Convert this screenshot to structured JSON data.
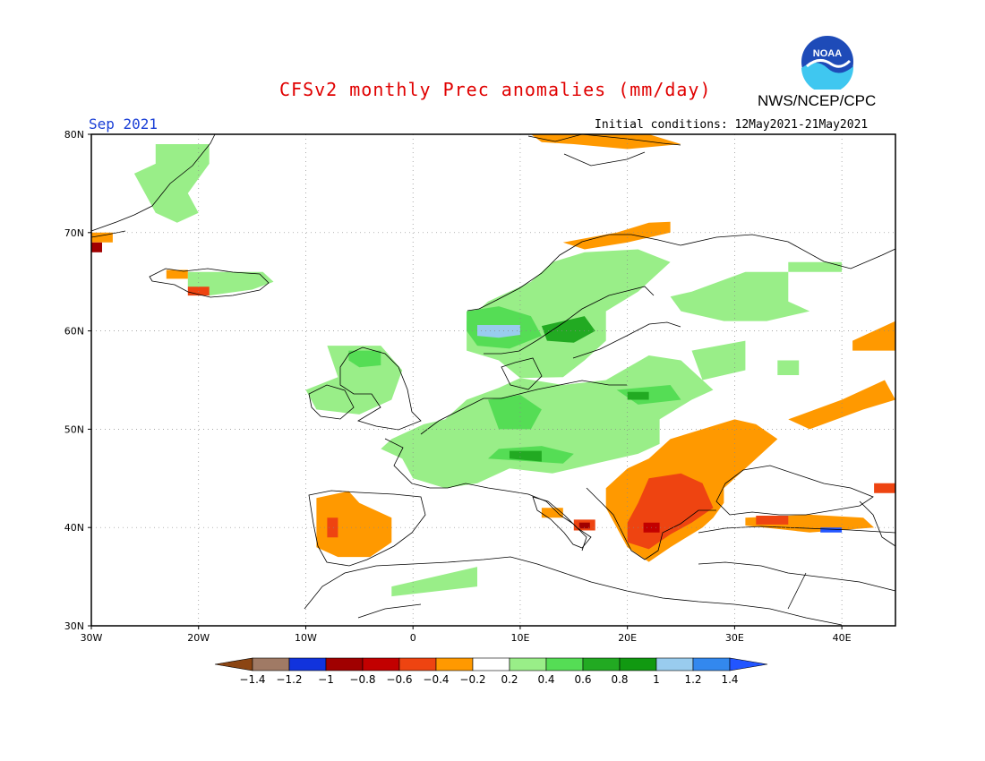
{
  "title": "CFSv2 monthly Prec anomalies (mm/day)",
  "agency": "NWS/NCEP/CPC",
  "logo_text": "NOAA",
  "month": "Sep 2021",
  "initial_conditions": "Initial conditions: 12May2021-21May2021",
  "map": {
    "lon_range": [
      -30,
      45
    ],
    "lat_range": [
      30,
      80
    ],
    "lon_labels": [
      {
        "v": -30,
        "t": "30W"
      },
      {
        "v": -20,
        "t": "20W"
      },
      {
        "v": -10,
        "t": "10W"
      },
      {
        "v": 0,
        "t": "0"
      },
      {
        "v": 10,
        "t": "10E"
      },
      {
        "v": 20,
        "t": "20E"
      },
      {
        "v": 30,
        "t": "30E"
      },
      {
        "v": 40,
        "t": "40E"
      }
    ],
    "lat_labels": [
      {
        "v": 30,
        "t": "30N"
      },
      {
        "v": 40,
        "t": "40N"
      },
      {
        "v": 50,
        "t": "50N"
      },
      {
        "v": 60,
        "t": "60N"
      },
      {
        "v": 70,
        "t": "70N"
      },
      {
        "v": 80,
        "t": "80N"
      }
    ],
    "grid": "dotted"
  },
  "colorbar": {
    "boundaries": [
      "-1.4",
      "-1.2",
      "-1",
      "-0.8",
      "-0.6",
      "-0.4",
      "-0.2",
      "0.2",
      "0.4",
      "0.6",
      "0.8",
      "1",
      "1.2",
      "1.4"
    ],
    "colors": [
      "#8b4513",
      "#a07a65",
      "#1133dd",
      "#a00000",
      "#c20000",
      "#ee4411",
      "#ff9900",
      "#ffffff",
      "#99ee88",
      "#55dd55",
      "#22aa22",
      "#119911",
      "#99ccee",
      "#3388ee",
      "#2255ff"
    ]
  },
  "anomaly_regions": [
    {
      "name": "Greenland east coast",
      "color": "#99ee88",
      "pts": [
        [
          -24,
          79
        ],
        [
          -19,
          79
        ],
        [
          -19,
          77
        ],
        [
          -21,
          74
        ],
        [
          -20,
          72
        ],
        [
          -22,
          71
        ],
        [
          -24,
          72
        ],
        [
          -25,
          74
        ],
        [
          -26,
          76
        ],
        [
          -24,
          77
        ]
      ]
    },
    {
      "name": "Svalbard",
      "color": "#ff9900",
      "pts": [
        [
          11,
          80
        ],
        [
          22,
          80
        ],
        [
          25,
          79
        ],
        [
          20,
          78.5
        ],
        [
          15,
          79
        ],
        [
          12,
          79.2
        ]
      ]
    },
    {
      "name": "Greenland SE corner",
      "color": "#ff9900",
      "pts": [
        [
          -30,
          70
        ],
        [
          -28,
          70
        ],
        [
          -28,
          69
        ],
        [
          -30,
          69
        ]
      ]
    },
    {
      "name": "Greenland SE tip",
      "color": "#a00000",
      "pts": [
        [
          -30,
          69
        ],
        [
          -29,
          69
        ],
        [
          -29,
          68
        ],
        [
          -30,
          68
        ]
      ]
    },
    {
      "name": "Iceland",
      "color": "#99ee88",
      "pts": [
        [
          -21,
          66
        ],
        [
          -14,
          66
        ],
        [
          -13,
          65
        ],
        [
          -15,
          64.2
        ],
        [
          -19,
          63.6
        ],
        [
          -21,
          64.5
        ]
      ]
    },
    {
      "name": "Iceland NW",
      "color": "#ff9900",
      "pts": [
        [
          -23,
          66.2
        ],
        [
          -21,
          66.2
        ],
        [
          -21,
          65.3
        ],
        [
          -23,
          65.3
        ]
      ]
    },
    {
      "name": "Iceland south",
      "color": "#ee4411",
      "pts": [
        [
          -21,
          64.5
        ],
        [
          -19,
          64.5
        ],
        [
          -19,
          63.6
        ],
        [
          -21,
          63.6
        ]
      ]
    },
    {
      "name": "Norway north coast",
      "color": "#ff9900",
      "pts": [
        [
          14,
          69
        ],
        [
          19,
          70
        ],
        [
          22,
          71
        ],
        [
          24,
          71.1
        ],
        [
          24,
          70
        ],
        [
          20,
          69
        ],
        [
          16,
          68.3
        ]
      ]
    },
    {
      "name": "Scandinavia",
      "color": "#99ee88",
      "pts": [
        [
          5,
          61
        ],
        [
          7,
          63
        ],
        [
          11,
          65
        ],
        [
          13,
          67
        ],
        [
          16,
          68
        ],
        [
          21,
          68.3
        ],
        [
          24,
          67
        ],
        [
          21,
          64
        ],
        [
          18,
          62
        ],
        [
          18,
          59
        ],
        [
          16,
          57
        ],
        [
          14,
          55.3
        ],
        [
          10,
          55.2
        ],
        [
          8,
          57
        ],
        [
          5,
          58
        ],
        [
          5,
          60
        ]
      ]
    },
    {
      "name": "Norway west",
      "color": "#55dd55",
      "pts": [
        [
          5,
          62
        ],
        [
          8,
          62.5
        ],
        [
          11,
          61.5
        ],
        [
          12,
          59.5
        ],
        [
          9,
          58.2
        ],
        [
          6,
          58.5
        ],
        [
          5,
          60
        ]
      ]
    },
    {
      "name": "Sweden central",
      "color": "#22aa22",
      "pts": [
        [
          12,
          60.5
        ],
        [
          16,
          61.5
        ],
        [
          17,
          60
        ],
        [
          15,
          58.8
        ],
        [
          12.5,
          59
        ]
      ]
    },
    {
      "name": "Norway fjord",
      "color": "#99ccee",
      "pts": [
        [
          6,
          60.6
        ],
        [
          10,
          60.6
        ],
        [
          10,
          59.6
        ],
        [
          8,
          59.3
        ],
        [
          6,
          59.5
        ]
      ]
    },
    {
      "name": "Finland / NW Russia",
      "color": "#99ee88",
      "pts": [
        [
          26,
          64
        ],
        [
          31,
          66
        ],
        [
          35,
          66
        ],
        [
          35,
          63
        ],
        [
          37,
          62
        ],
        [
          33,
          61
        ],
        [
          29,
          61
        ],
        [
          25,
          62
        ],
        [
          24,
          63.5
        ]
      ]
    },
    {
      "name": "Kola",
      "color": "#99ee88",
      "pts": [
        [
          35,
          67
        ],
        [
          40,
          67
        ],
        [
          40,
          66
        ],
        [
          35,
          66
        ]
      ]
    },
    {
      "name": "Ireland / Scotland",
      "color": "#99ee88",
      "pts": [
        [
          -8,
          58.5
        ],
        [
          -3,
          58.5
        ],
        [
          -1,
          56
        ],
        [
          -2,
          53
        ],
        [
          -5,
          51.5
        ],
        [
          -9,
          52
        ],
        [
          -10,
          54
        ],
        [
          -7,
          55.3
        ]
      ]
    },
    {
      "name": "Scotland west",
      "color": "#55dd55",
      "pts": [
        [
          -6,
          58
        ],
        [
          -3,
          58
        ],
        [
          -3,
          56.5
        ],
        [
          -5,
          56.3
        ],
        [
          -6,
          57
        ]
      ]
    },
    {
      "name": "Central Europe",
      "color": "#99ee88",
      "pts": [
        [
          -3,
          48
        ],
        [
          -1,
          47
        ],
        [
          0,
          45
        ],
        [
          3,
          44
        ],
        [
          6,
          44.5
        ],
        [
          9,
          46
        ],
        [
          13,
          45.5
        ],
        [
          17,
          46.5
        ],
        [
          21,
          47.5
        ],
        [
          23,
          48.5
        ],
        [
          23,
          51
        ],
        [
          26,
          53
        ],
        [
          28,
          54
        ],
        [
          25,
          57
        ],
        [
          22,
          57.5
        ],
        [
          18,
          55
        ],
        [
          14,
          54.5
        ],
        [
          10,
          55.2
        ],
        [
          8,
          54.2
        ],
        [
          5,
          53
        ],
        [
          3,
          51
        ],
        [
          1,
          50.5
        ],
        [
          -2,
          49
        ]
      ]
    },
    {
      "name": "Alps / N Germany green",
      "color": "#55dd55",
      "pts": [
        [
          7,
          47
        ],
        [
          14,
          46.5
        ],
        [
          15,
          47.5
        ],
        [
          12,
          48.3
        ],
        [
          8,
          48
        ]
      ]
    },
    {
      "name": "Germany band",
      "color": "#55dd55",
      "pts": [
        [
          7,
          53
        ],
        [
          10,
          53.5
        ],
        [
          12,
          52
        ],
        [
          11,
          50
        ],
        [
          8,
          50
        ]
      ]
    },
    {
      "name": "Baltic band",
      "color": "#55dd55",
      "pts": [
        [
          19,
          54
        ],
        [
          24,
          54.5
        ],
        [
          25,
          53
        ],
        [
          21,
          52.5
        ]
      ]
    },
    {
      "name": "Alps dark",
      "color": "#22aa22",
      "pts": [
        [
          9,
          47
        ],
        [
          12,
          46.7
        ],
        [
          12,
          47.8
        ],
        [
          9,
          47.8
        ]
      ]
    },
    {
      "name": "Baltic dark",
      "color": "#22aa22",
      "pts": [
        [
          20,
          53.8
        ],
        [
          22,
          53.8
        ],
        [
          22,
          53
        ],
        [
          20,
          53
        ]
      ]
    },
    {
      "name": "Baltic states",
      "color": "#99ee88",
      "pts": [
        [
          26,
          58
        ],
        [
          31,
          59
        ],
        [
          31,
          56
        ],
        [
          27,
          55
        ]
      ]
    },
    {
      "name": "Belarus pocket",
      "color": "#99ee88",
      "pts": [
        [
          34,
          57
        ],
        [
          36,
          57
        ],
        [
          36,
          55.5
        ],
        [
          34,
          55.5
        ]
      ]
    },
    {
      "name": "Iberia",
      "color": "#ff9900",
      "pts": [
        [
          -9,
          43
        ],
        [
          -6,
          43.7
        ],
        [
          -5,
          42.5
        ],
        [
          -2,
          41
        ],
        [
          -2,
          38.5
        ],
        [
          -4,
          37
        ],
        [
          -7,
          37
        ],
        [
          -9,
          38
        ]
      ]
    },
    {
      "name": "Iberia red",
      "color": "#ee4411",
      "pts": [
        [
          -8,
          41
        ],
        [
          -7,
          41
        ],
        [
          -7,
          39
        ],
        [
          -8,
          39
        ]
      ]
    },
    {
      "name": "Morocco / Algeria",
      "color": "#99ee88",
      "pts": [
        [
          -2,
          34
        ],
        [
          2,
          35
        ],
        [
          6,
          36
        ],
        [
          6,
          34
        ],
        [
          2,
          33.5
        ],
        [
          -2,
          33
        ]
      ]
    },
    {
      "name": "Balkans / Ukraine",
      "color": "#ff9900",
      "pts": [
        [
          18,
          44
        ],
        [
          20,
          46
        ],
        [
          22,
          47
        ],
        [
          24,
          49
        ],
        [
          27,
          50
        ],
        [
          30,
          51
        ],
        [
          32,
          50.5
        ],
        [
          34,
          49
        ],
        [
          31,
          46
        ],
        [
          29,
          44
        ],
        [
          29,
          42.5
        ],
        [
          28,
          41
        ],
        [
          27,
          40
        ],
        [
          24,
          38
        ],
        [
          22,
          36.5
        ],
        [
          20,
          38
        ],
        [
          19,
          40
        ],
        [
          18,
          42
        ]
      ]
    },
    {
      "name": "Balkans red",
      "color": "#ee4411",
      "pts": [
        [
          22,
          45
        ],
        [
          25,
          45.5
        ],
        [
          27,
          44.5
        ],
        [
          28,
          42
        ],
        [
          26,
          40.5
        ],
        [
          24,
          39.3
        ],
        [
          22,
          37.8
        ],
        [
          20,
          38.5
        ],
        [
          20,
          40.5
        ],
        [
          21,
          42.5
        ]
      ]
    },
    {
      "name": "Greece dark",
      "color": "#c20000",
      "pts": [
        [
          21.5,
          40.5
        ],
        [
          23,
          40.5
        ],
        [
          23,
          39.5
        ],
        [
          21.5,
          39.5
        ]
      ]
    },
    {
      "name": "S Italy red",
      "color": "#ee4411",
      "pts": [
        [
          15,
          40.8
        ],
        [
          17,
          40.8
        ],
        [
          17,
          39.7
        ],
        [
          15,
          39.7
        ]
      ]
    },
    {
      "name": "S Italy dark",
      "color": "#a00000",
      "pts": [
        [
          15.5,
          40.5
        ],
        [
          16.5,
          40.5
        ],
        [
          16.5,
          39.9
        ],
        [
          15.5,
          39.9
        ]
      ]
    },
    {
      "name": "S Italy orange",
      "color": "#ff9900",
      "pts": [
        [
          12,
          42
        ],
        [
          14,
          42
        ],
        [
          14,
          41
        ],
        [
          12,
          41
        ]
      ]
    },
    {
      "name": "Russia east",
      "color": "#ff9900",
      "pts": [
        [
          35,
          51
        ],
        [
          40,
          53
        ],
        [
          44,
          55
        ],
        [
          45,
          53
        ],
        [
          42,
          52
        ],
        [
          37,
          50
        ]
      ]
    },
    {
      "name": "Volga",
      "color": "#ff9900",
      "pts": [
        [
          41,
          59
        ],
        [
          45,
          61
        ],
        [
          45,
          58
        ],
        [
          41,
          58
        ]
      ]
    },
    {
      "name": "Turkey north",
      "color": "#ff9900",
      "pts": [
        [
          31,
          41
        ],
        [
          37,
          41.3
        ],
        [
          42,
          41
        ],
        [
          43,
          40
        ],
        [
          37,
          39.5
        ],
        [
          31,
          40.2
        ]
      ]
    },
    {
      "name": "Turkey red",
      "color": "#ee4411",
      "pts": [
        [
          32,
          41.2
        ],
        [
          35,
          41.2
        ],
        [
          35,
          40.3
        ],
        [
          32,
          40.3
        ]
      ]
    },
    {
      "name": "Turkey blue",
      "color": "#2255ff",
      "pts": [
        [
          38,
          40
        ],
        [
          40,
          40
        ],
        [
          40,
          39.5
        ],
        [
          38,
          39.5
        ]
      ]
    },
    {
      "name": "Caucasus",
      "color": "#ee4411",
      "pts": [
        [
          43,
          44.5
        ],
        [
          45,
          44.5
        ],
        [
          45,
          43.5
        ],
        [
          43,
          43.5
        ]
      ]
    }
  ]
}
